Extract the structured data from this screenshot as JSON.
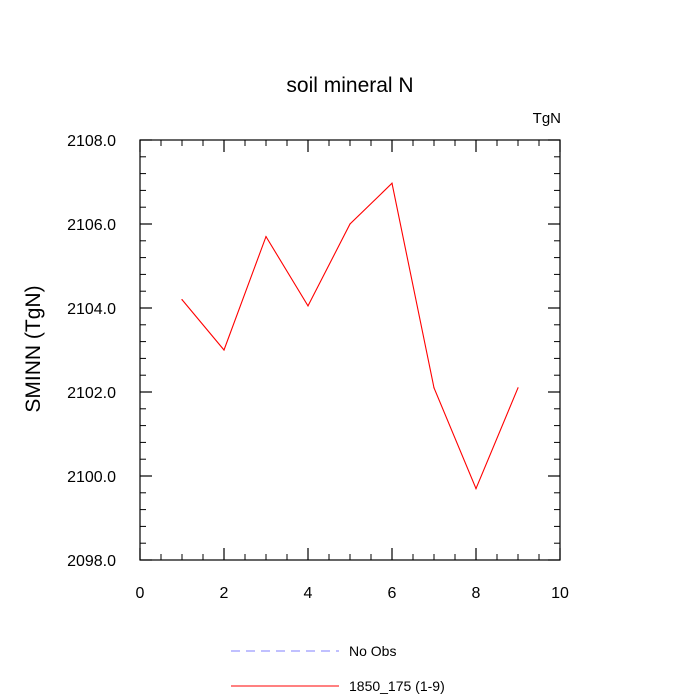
{
  "chart_data": {
    "type": "line",
    "title": "soil mineral N",
    "units_label": "TgN",
    "xlabel": "",
    "ylabel": "SMINN  (TgN)",
    "xlim": [
      0,
      10
    ],
    "ylim": [
      2098.0,
      2108.0
    ],
    "x_ticks": [
      0,
      2,
      4,
      6,
      8,
      10
    ],
    "x_tick_labels": [
      "0",
      "2",
      "4",
      "6",
      "8",
      "10"
    ],
    "y_ticks": [
      2098.0,
      2100.0,
      2102.0,
      2104.0,
      2106.0,
      2108.0
    ],
    "y_tick_labels": [
      "2098.0",
      "2100.0",
      "2102.0",
      "2104.0",
      "2106.0",
      "2108.0"
    ],
    "grid": false,
    "series": [
      {
        "name": "1850_175 (1-9)",
        "color": "#ff0000",
        "dashed": false,
        "x": [
          1,
          2,
          3,
          4,
          5,
          6,
          7,
          8,
          9
        ],
        "y": [
          2104.2,
          2103.0,
          2105.7,
          2104.05,
          2106.0,
          2106.97,
          2102.1,
          2099.7,
          2102.1
        ]
      }
    ],
    "legend": {
      "placement": "bottom-center",
      "entries": [
        {
          "label": "No Obs",
          "color": "#8080ff",
          "dashed": true
        },
        {
          "label": "1850_175 (1-9)",
          "color": "#ff0000",
          "dashed": false
        }
      ]
    }
  }
}
